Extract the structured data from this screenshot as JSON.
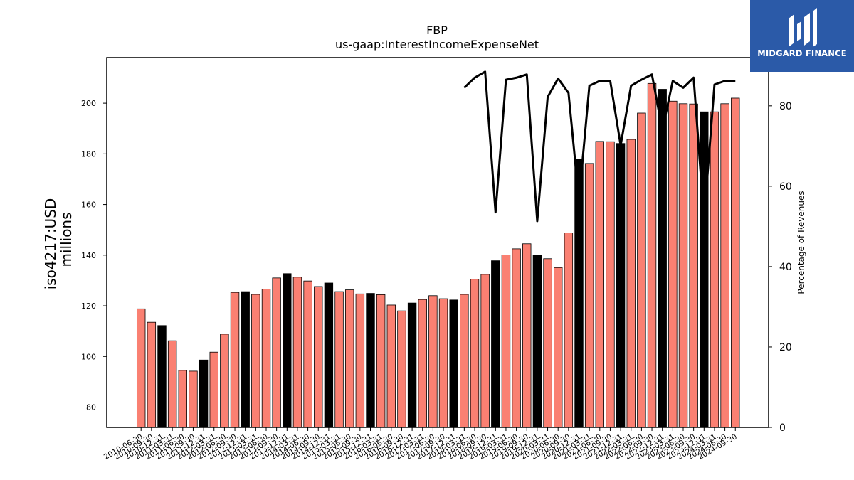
{
  "chart_data": {
    "type": "bar",
    "title": "FBP",
    "subtitle": "us-gaap:InterestIncomeExpenseNet",
    "ylabel_line1": "iso4217:USD",
    "ylabel_line2": "millions",
    "y2label": "Percentage of Revenues",
    "ylim": [
      72,
      218
    ],
    "y2lim": [
      0,
      92
    ],
    "yticks": [
      80,
      100,
      120,
      140,
      160,
      180,
      200
    ],
    "y2ticks": [
      0,
      20,
      40,
      60,
      80
    ],
    "categories": [
      "2010-06-30",
      "2010-09-30",
      "2010-12-31",
      "2011-03-31",
      "2011-06-30",
      "2011-09-30",
      "2011-12-31",
      "2012-03-31",
      "2012-06-30",
      "2012-09-30",
      "2012-12-31",
      "2013-03-31",
      "2013-06-30",
      "2013-09-30",
      "2013-12-31",
      "2014-03-31",
      "2014-06-30",
      "2014-09-30",
      "2014-12-31",
      "2015-03-31",
      "2015-06-30",
      "2015-09-30",
      "2015-12-31",
      "2016-03-31",
      "2016-06-30",
      "2016-09-30",
      "2016-12-31",
      "2017-03-31",
      "2017-06-30",
      "2017-09-30",
      "2017-12-31",
      "2018-03-31",
      "2018-06-30",
      "2018-09-30",
      "2018-12-31",
      "2019-03-31",
      "2019-06-30",
      "2019-09-30",
      "2019-12-31",
      "2020-03-31",
      "2020-06-30",
      "2020-09-30",
      "2020-12-31",
      "2021-03-31",
      "2021-06-30",
      "2021-09-30",
      "2021-12-31",
      "2022-03-31",
      "2022-06-30",
      "2022-09-30",
      "2022-12-31",
      "2023-03-31",
      "2023-06-30",
      "2023-09-30",
      "2023-12-31",
      "2024-03-31",
      "2024-06-30",
      "2024-09-30"
    ],
    "series": [
      {
        "values": [
          118.8,
          113.5,
          112.2,
          106.2,
          94.5,
          94.2,
          98.6,
          101.7,
          108.8,
          125.3,
          125.6,
          124.5,
          126.6,
          131.0,
          132.7,
          131.3,
          129.8,
          127.6,
          129.0,
          125.6,
          126.3,
          124.7,
          124.9,
          124.4,
          120.3,
          118.0,
          121.1,
          122.5,
          124.0,
          122.8,
          122.3,
          124.5,
          130.5,
          132.4,
          137.8,
          140.1,
          142.5,
          144.5,
          140.1,
          138.6,
          135.1,
          148.8,
          177.9,
          176.2,
          184.9,
          184.8,
          184.1,
          185.7,
          196.1,
          207.8,
          205.5,
          200.8,
          199.8,
          199.7,
          196.6,
          196.6,
          199.8,
          202.0
        ],
        "colors": [
          "salmon",
          "salmon",
          "black",
          "salmon",
          "salmon",
          "salmon",
          "black",
          "salmon",
          "salmon",
          "salmon",
          "black",
          "salmon",
          "salmon",
          "salmon",
          "black",
          "salmon",
          "salmon",
          "salmon",
          "black",
          "salmon",
          "salmon",
          "salmon",
          "black",
          "salmon",
          "salmon",
          "salmon",
          "black",
          "salmon",
          "salmon",
          "salmon",
          "black",
          "salmon",
          "salmon",
          "salmon",
          "black",
          "salmon",
          "salmon",
          "salmon",
          "black",
          "salmon",
          "salmon",
          "salmon",
          "black",
          "salmon",
          "salmon",
          "salmon",
          "black",
          "salmon",
          "salmon",
          "salmon",
          "black",
          "salmon",
          "salmon",
          "salmon",
          "black",
          "salmon",
          "salmon",
          "salmon"
        ]
      },
      {
        "type": "line",
        "axis": "right",
        "values": [
          null,
          null,
          null,
          null,
          null,
          null,
          null,
          null,
          null,
          null,
          null,
          null,
          null,
          null,
          null,
          null,
          null,
          null,
          null,
          null,
          null,
          null,
          null,
          null,
          null,
          null,
          null,
          null,
          null,
          null,
          null,
          84.5,
          87.0,
          88.5,
          53.5,
          86.5,
          87.0,
          87.8,
          51.3,
          82.2,
          86.8,
          83.2,
          56.5,
          85.0,
          86.2,
          86.2,
          70.2,
          85.0,
          86.5,
          87.8,
          74.0,
          86.2,
          84.5,
          87.0,
          51.8,
          85.3,
          86.2,
          86.2
        ]
      }
    ],
    "colors": {
      "salmon": "#fa8072",
      "black": "#000000",
      "line": "#000000"
    }
  },
  "logo": {
    "text": "MIDGARD FINANCE"
  }
}
